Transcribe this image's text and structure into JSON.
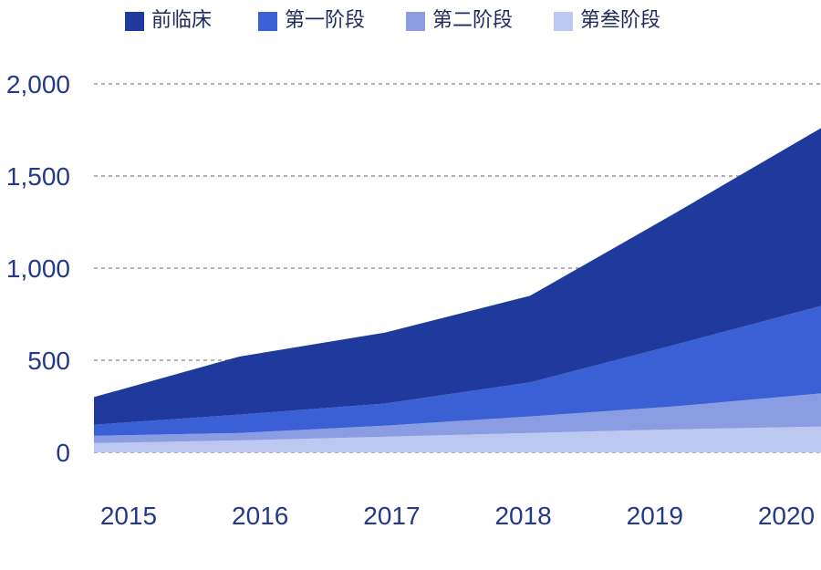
{
  "chart_data": {
    "type": "area",
    "stacked": true,
    "title": "",
    "xlabel": "",
    "ylabel": "",
    "categories": [
      "2015",
      "2016",
      "2017",
      "2018",
      "2019",
      "2020"
    ],
    "series": [
      {
        "name": "前临床",
        "color": "#1f3a9c",
        "values": [
          150,
          315,
          385,
          470,
          715,
          965
        ]
      },
      {
        "name": "第一阶段",
        "color": "#3b5fd4",
        "values": [
          60,
          100,
          120,
          185,
          335,
          475
        ]
      },
      {
        "name": "第二阶段",
        "color": "#8a9de3",
        "values": [
          40,
          40,
          60,
          90,
          125,
          180
        ]
      },
      {
        "name": "第叁阶段",
        "color": "#bdc8f1",
        "values": [
          50,
          65,
          85,
          105,
          125,
          140
        ]
      }
    ],
    "ylim": [
      0,
      2000
    ],
    "y_tick_values": [
      0,
      500,
      1000,
      1500,
      2000
    ],
    "y_tick_labels": [
      "0",
      "500",
      "1,000",
      "1,500",
      "2,000"
    ],
    "grid": true,
    "grid_color": "#9a9a9a",
    "axis_text_color": "#23398a",
    "legend_position": "top"
  }
}
